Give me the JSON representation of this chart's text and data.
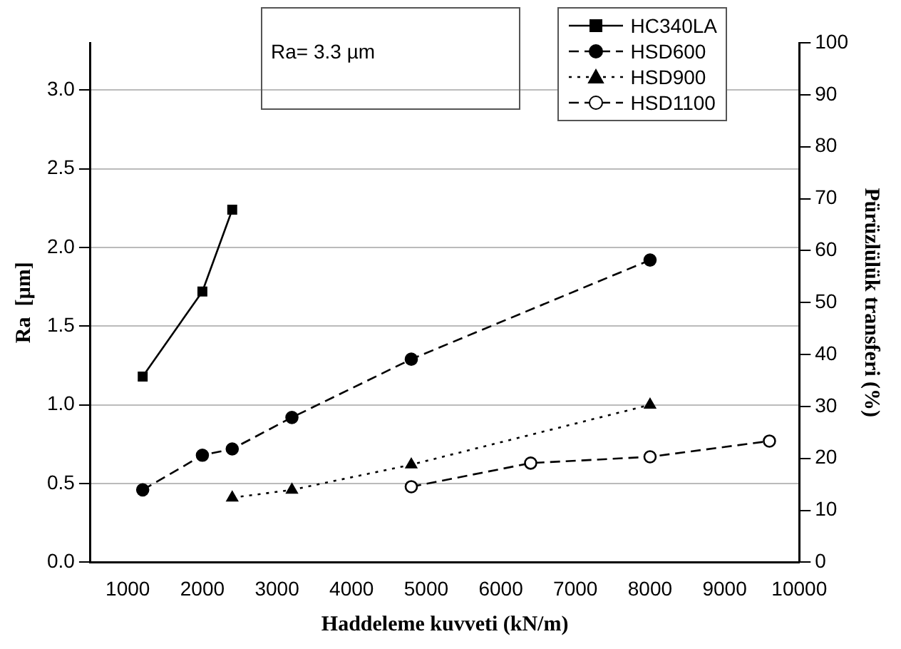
{
  "chart_data": {
    "type": "line",
    "xlabel": "Haddeleme kuvveti (kN/m)",
    "ylabel": "Ra  [µm]",
    "y2label": "Pürüzlülük transferi (%)",
    "annotations": [
      "Ra= 3.3 µm"
    ],
    "xlim": [
      500,
      10000
    ],
    "xticks": [
      1000,
      2000,
      3000,
      4000,
      5000,
      6000,
      7000,
      8000,
      9000,
      10000
    ],
    "ylim": [
      0,
      3.3
    ],
    "yticks": [
      {
        "value": 0,
        "label": "0.0"
      },
      {
        "value": 0.5,
        "label": "0.5"
      },
      {
        "value": 1,
        "label": "1.0"
      },
      {
        "value": 1.5,
        "label": "1.5"
      },
      {
        "value": 2,
        "label": "2.0"
      },
      {
        "value": 2.5,
        "label": "2.5"
      },
      {
        "value": 3,
        "label": "3.0"
      }
    ],
    "y2lim": [
      0,
      100
    ],
    "y2ticks": [
      0,
      10,
      20,
      30,
      40,
      50,
      60,
      70,
      80,
      90,
      100
    ],
    "grid": "y",
    "legend": "top right",
    "series": [
      {
        "name": "HC340LA",
        "color": "#000000",
        "marker": "square",
        "line_style": "solid",
        "x": [
          1200,
          2000,
          2400
        ],
        "values": [
          1.18,
          1.72,
          2.24
        ]
      },
      {
        "name": "HSD600",
        "color": "#000000",
        "marker": "circle",
        "line_style": "dashed",
        "x": [
          1200,
          2000,
          2400,
          3200,
          4800,
          8000
        ],
        "values": [
          0.46,
          0.68,
          0.72,
          0.92,
          1.29,
          1.92
        ]
      },
      {
        "name": "HSD900",
        "color": "#000000",
        "marker": "triangle",
        "line_style": "dotted",
        "x": [
          2400,
          3200,
          4800,
          8000
        ],
        "values": [
          0.41,
          0.46,
          0.62,
          1.0
        ]
      },
      {
        "name": "HSD1100",
        "color": "#000000",
        "marker": "circle",
        "line_style": "dashed",
        "x": [
          4800,
          6400,
          8000,
          9600
        ],
        "values": [
          0.48,
          0.63,
          0.67,
          0.77
        ]
      }
    ]
  }
}
